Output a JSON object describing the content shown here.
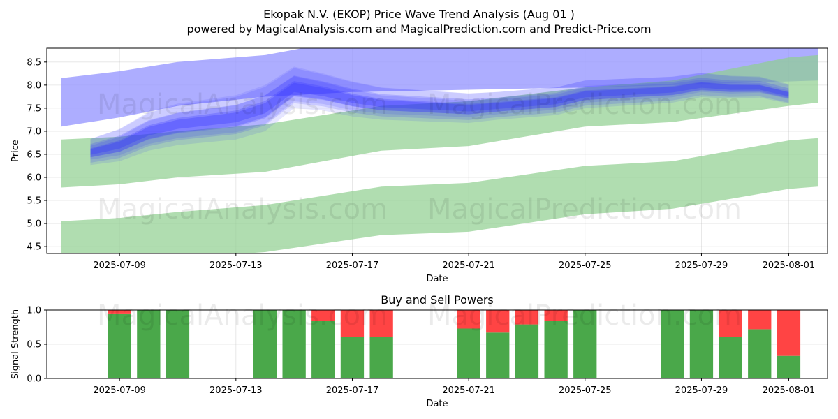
{
  "title_line1": "Ekopak N.V. (EKOP) Price Wave Trend Analysis (Aug 01 )",
  "title_line2": "powered by MagicalAnalysis.com and MagicalPrediction.com and Predict-Price.com",
  "watermarks": [
    "MagicalAnalysis.com",
    "MagicalPrediction.com"
  ],
  "colors": {
    "buy": "#4aa84a",
    "sell": "#ff4444",
    "wave": "#3333ff",
    "band_green": "#8fcf8f",
    "band_blue": "#9999ff"
  },
  "chart_data": [
    {
      "type": "area",
      "ylabel": "Price",
      "xlabel": "Date",
      "ylim": [
        4.35,
        8.8
      ],
      "xlim": [
        "2025-07-06T12:00",
        "2025-08-02T08:00"
      ],
      "grid": true,
      "x_ticks": [
        "2025-07-09",
        "2025-07-13",
        "2025-07-17",
        "2025-07-21",
        "2025-07-25",
        "2025-07-29",
        "2025-08-01"
      ],
      "y_ticks": [
        4.5,
        5.0,
        5.5,
        6.0,
        6.5,
        7.0,
        7.5,
        8.0,
        8.5
      ],
      "bands": [
        {
          "color": "blue",
          "x": [
            "2025-07-07",
            "2025-07-09",
            "2025-07-11",
            "2025-07-14",
            "2025-07-17",
            "2025-07-21",
            "2025-07-25",
            "2025-07-28",
            "2025-08-02"
          ],
          "upper": [
            8.15,
            8.3,
            8.5,
            8.65,
            9.0,
            9.2,
            9.3,
            9.4,
            9.5
          ],
          "lower": [
            7.1,
            7.3,
            7.55,
            7.75,
            7.85,
            7.9,
            7.95,
            8.0,
            8.1
          ]
        },
        {
          "color": "green",
          "x": [
            "2025-07-07",
            "2025-07-09",
            "2025-07-11",
            "2025-07-14",
            "2025-07-18",
            "2025-07-21",
            "2025-07-25",
            "2025-07-28",
            "2025-08-01",
            "2025-08-02"
          ],
          "upper": [
            6.82,
            6.88,
            7.0,
            7.15,
            7.55,
            7.65,
            7.95,
            8.1,
            8.6,
            8.65
          ],
          "lower": [
            5.78,
            5.85,
            6.0,
            6.12,
            6.58,
            6.68,
            7.1,
            7.2,
            7.55,
            7.62
          ]
        },
        {
          "color": "green",
          "x": [
            "2025-07-07",
            "2025-07-09",
            "2025-07-11",
            "2025-07-14",
            "2025-07-18",
            "2025-07-21",
            "2025-07-25",
            "2025-07-28",
            "2025-08-01",
            "2025-08-02"
          ],
          "upper": [
            5.05,
            5.12,
            5.25,
            5.4,
            5.8,
            5.88,
            6.25,
            6.35,
            6.8,
            6.85
          ],
          "lower": [
            4.0,
            4.1,
            4.25,
            4.38,
            4.75,
            4.82,
            5.2,
            5.32,
            5.75,
            5.8
          ]
        }
      ],
      "wave": {
        "x": [
          "2025-07-08",
          "2025-07-09",
          "2025-07-10",
          "2025-07-11",
          "2025-07-13",
          "2025-07-14",
          "2025-07-15",
          "2025-07-16",
          "2025-07-17",
          "2025-07-18",
          "2025-07-21",
          "2025-07-22",
          "2025-07-23",
          "2025-07-24",
          "2025-07-25",
          "2025-07-28",
          "2025-07-29",
          "2025-07-30",
          "2025-07-31",
          "2025-08-01"
        ],
        "y": [
          6.55,
          6.7,
          7.0,
          7.15,
          7.3,
          7.5,
          7.95,
          7.85,
          7.7,
          7.6,
          7.5,
          7.55,
          7.6,
          7.65,
          7.8,
          7.9,
          8.0,
          7.95,
          7.95,
          7.8
        ],
        "spread": [
          0.28,
          0.35,
          0.42,
          0.45,
          0.48,
          0.5,
          0.45,
          0.4,
          0.38,
          0.35,
          0.32,
          0.3,
          0.3,
          0.3,
          0.3,
          0.28,
          0.26,
          0.24,
          0.22,
          0.2
        ]
      }
    },
    {
      "type": "bar",
      "title": "Buy and Sell Powers",
      "ylabel": "Signal Strength",
      "xlabel": "Date",
      "ylim": [
        0,
        1.0
      ],
      "x_ticks": [
        "2025-07-09",
        "2025-07-13",
        "2025-07-17",
        "2025-07-21",
        "2025-07-25",
        "2025-07-29",
        "2025-08-01"
      ],
      "y_ticks": [
        0.0,
        0.5,
        1.0
      ],
      "dates": [
        "2025-07-09",
        "2025-07-10",
        "2025-07-11",
        "2025-07-14",
        "2025-07-15",
        "2025-07-16",
        "2025-07-17",
        "2025-07-18",
        "2025-07-21",
        "2025-07-22",
        "2025-07-23",
        "2025-07-24",
        "2025-07-25",
        "2025-07-28",
        "2025-07-29",
        "2025-07-30",
        "2025-07-31",
        "2025-08-01"
      ],
      "series": [
        {
          "name": "Buy",
          "values": [
            0.95,
            1.0,
            1.0,
            1.0,
            1.0,
            0.84,
            0.61,
            0.61,
            0.73,
            0.67,
            0.79,
            0.84,
            1.0,
            1.0,
            1.0,
            0.61,
            0.72,
            0.33
          ]
        },
        {
          "name": "Sell",
          "values": [
            0.05,
            0.0,
            0.0,
            0.0,
            0.0,
            0.16,
            0.39,
            0.39,
            0.27,
            0.33,
            0.21,
            0.16,
            0.0,
            0.0,
            0.0,
            0.39,
            0.28,
            0.67
          ]
        }
      ]
    }
  ]
}
